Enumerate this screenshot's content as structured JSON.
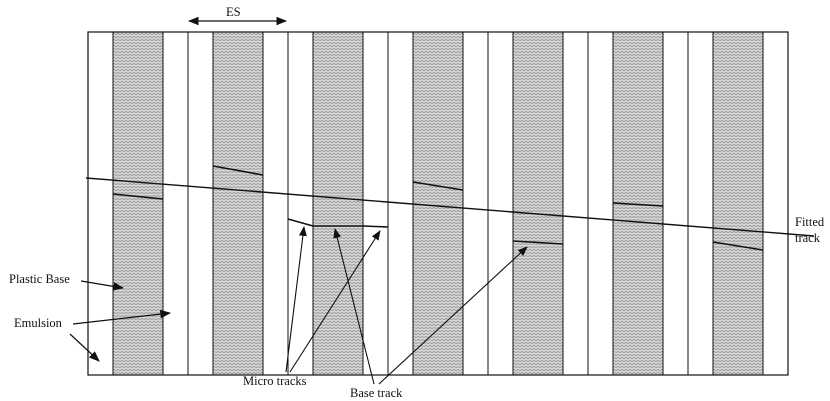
{
  "labels": {
    "es": "ES",
    "fitted_line1": "Fitted",
    "fitted_line2": "track",
    "plastic_base": "Plastic Base",
    "emulsion": "Emulsion",
    "micro_tracks": "Micro tracks",
    "base_track": "Base track"
  },
  "colors": {
    "stroke": "#111111",
    "hatch": "#9a9a9a",
    "background": "#ffffff"
  }
}
